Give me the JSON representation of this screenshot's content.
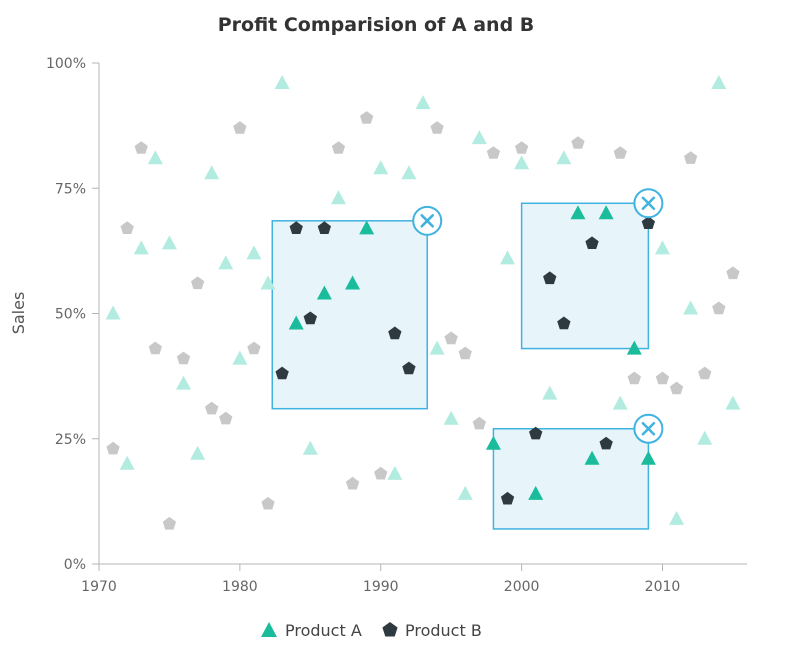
{
  "chart_data": {
    "type": "scatter",
    "title": "Profit Comparision of A and B",
    "xlabel": "",
    "ylabel": "Sales",
    "xlim": [
      1970,
      2016
    ],
    "ylim": [
      0,
      100
    ],
    "x_ticks": [
      1970,
      1980,
      1990,
      2000,
      2010
    ],
    "y_ticks": [
      0,
      25,
      50,
      75,
      100
    ],
    "x_tick_labels": [
      "1970",
      "1980",
      "1990",
      "2000",
      "2010"
    ],
    "y_tick_labels": [
      "0%",
      "25%",
      "50%",
      "75%",
      "100%"
    ],
    "legend": {
      "position": "bottom-center",
      "entries": [
        "Product A",
        "Product B"
      ]
    },
    "colors": {
      "product_a": "#1ABC9C",
      "product_b": "#2F3A40",
      "faded_a": "#B2EBE0",
      "faded_b": "#C8C8C8",
      "selection_fill": "#E3F3FA",
      "selection_stroke": "#3FB2E0"
    },
    "selections": [
      {
        "x0": 1982.3,
        "x1": 1993.3,
        "y0": 31,
        "y1": 68.5
      },
      {
        "x0": 2000,
        "x1": 2009,
        "y0": 43,
        "y1": 72
      },
      {
        "x0": 1998,
        "x1": 2009,
        "y0": 7,
        "y1": 27
      }
    ],
    "series": [
      {
        "name": "Product A",
        "marker": "triangle",
        "points": [
          [
            1971,
            50
          ],
          [
            1972,
            20
          ],
          [
            1973,
            63
          ],
          [
            1974,
            81
          ],
          [
            1975,
            64
          ],
          [
            1976,
            36
          ],
          [
            1977,
            22
          ],
          [
            1978,
            78
          ],
          [
            1979,
            60
          ],
          [
            1980,
            41
          ],
          [
            1981,
            62
          ],
          [
            1982,
            56
          ],
          [
            1983,
            96
          ],
          [
            1984,
            48
          ],
          [
            1985,
            23
          ],
          [
            1986,
            54
          ],
          [
            1987,
            73
          ],
          [
            1988,
            56
          ],
          [
            1989,
            67
          ],
          [
            1990,
            79
          ],
          [
            1991,
            18
          ],
          [
            1992,
            78
          ],
          [
            1993,
            92
          ],
          [
            1994,
            43
          ],
          [
            1995,
            29
          ],
          [
            1996,
            14
          ],
          [
            1997,
            85
          ],
          [
            1998,
            24
          ],
          [
            1999,
            61
          ],
          [
            2000,
            80
          ],
          [
            2001,
            14
          ],
          [
            2002,
            34
          ],
          [
            2003,
            81
          ],
          [
            2004,
            70
          ],
          [
            2005,
            21
          ],
          [
            2006,
            70
          ],
          [
            2007,
            32
          ],
          [
            2008,
            43
          ],
          [
            2009,
            21
          ],
          [
            2010,
            63
          ],
          [
            2011,
            9
          ],
          [
            2012,
            51
          ],
          [
            2013,
            25
          ],
          [
            2014,
            96
          ],
          [
            2015,
            32
          ]
        ]
      },
      {
        "name": "Product B",
        "marker": "pentagon",
        "points": [
          [
            1971,
            23
          ],
          [
            1972,
            67
          ],
          [
            1973,
            83
          ],
          [
            1974,
            43
          ],
          [
            1975,
            8
          ],
          [
            1976,
            41
          ],
          [
            1977,
            56
          ],
          [
            1978,
            31
          ],
          [
            1979,
            29
          ],
          [
            1980,
            87
          ],
          [
            1981,
            43
          ],
          [
            1982,
            12
          ],
          [
            1983,
            38
          ],
          [
            1984,
            67
          ],
          [
            1985,
            49
          ],
          [
            1986,
            67
          ],
          [
            1987,
            83
          ],
          [
            1988,
            16
          ],
          [
            1989,
            89
          ],
          [
            1990,
            18
          ],
          [
            1991,
            46
          ],
          [
            1992,
            39
          ],
          [
            1994,
            87
          ],
          [
            1995,
            45
          ],
          [
            1996,
            42
          ],
          [
            1997,
            28
          ],
          [
            1998,
            82
          ],
          [
            1999,
            13
          ],
          [
            2000,
            83
          ],
          [
            2001,
            26
          ],
          [
            2002,
            57
          ],
          [
            2003,
            48
          ],
          [
            2004,
            84
          ],
          [
            2005,
            64
          ],
          [
            2006,
            24
          ],
          [
            2007,
            82
          ],
          [
            2008,
            37
          ],
          [
            2009,
            68
          ],
          [
            2010,
            37
          ],
          [
            2011,
            35
          ],
          [
            2012,
            81
          ],
          [
            2013,
            38
          ],
          [
            2014,
            51
          ],
          [
            2015,
            58
          ]
        ]
      }
    ]
  }
}
